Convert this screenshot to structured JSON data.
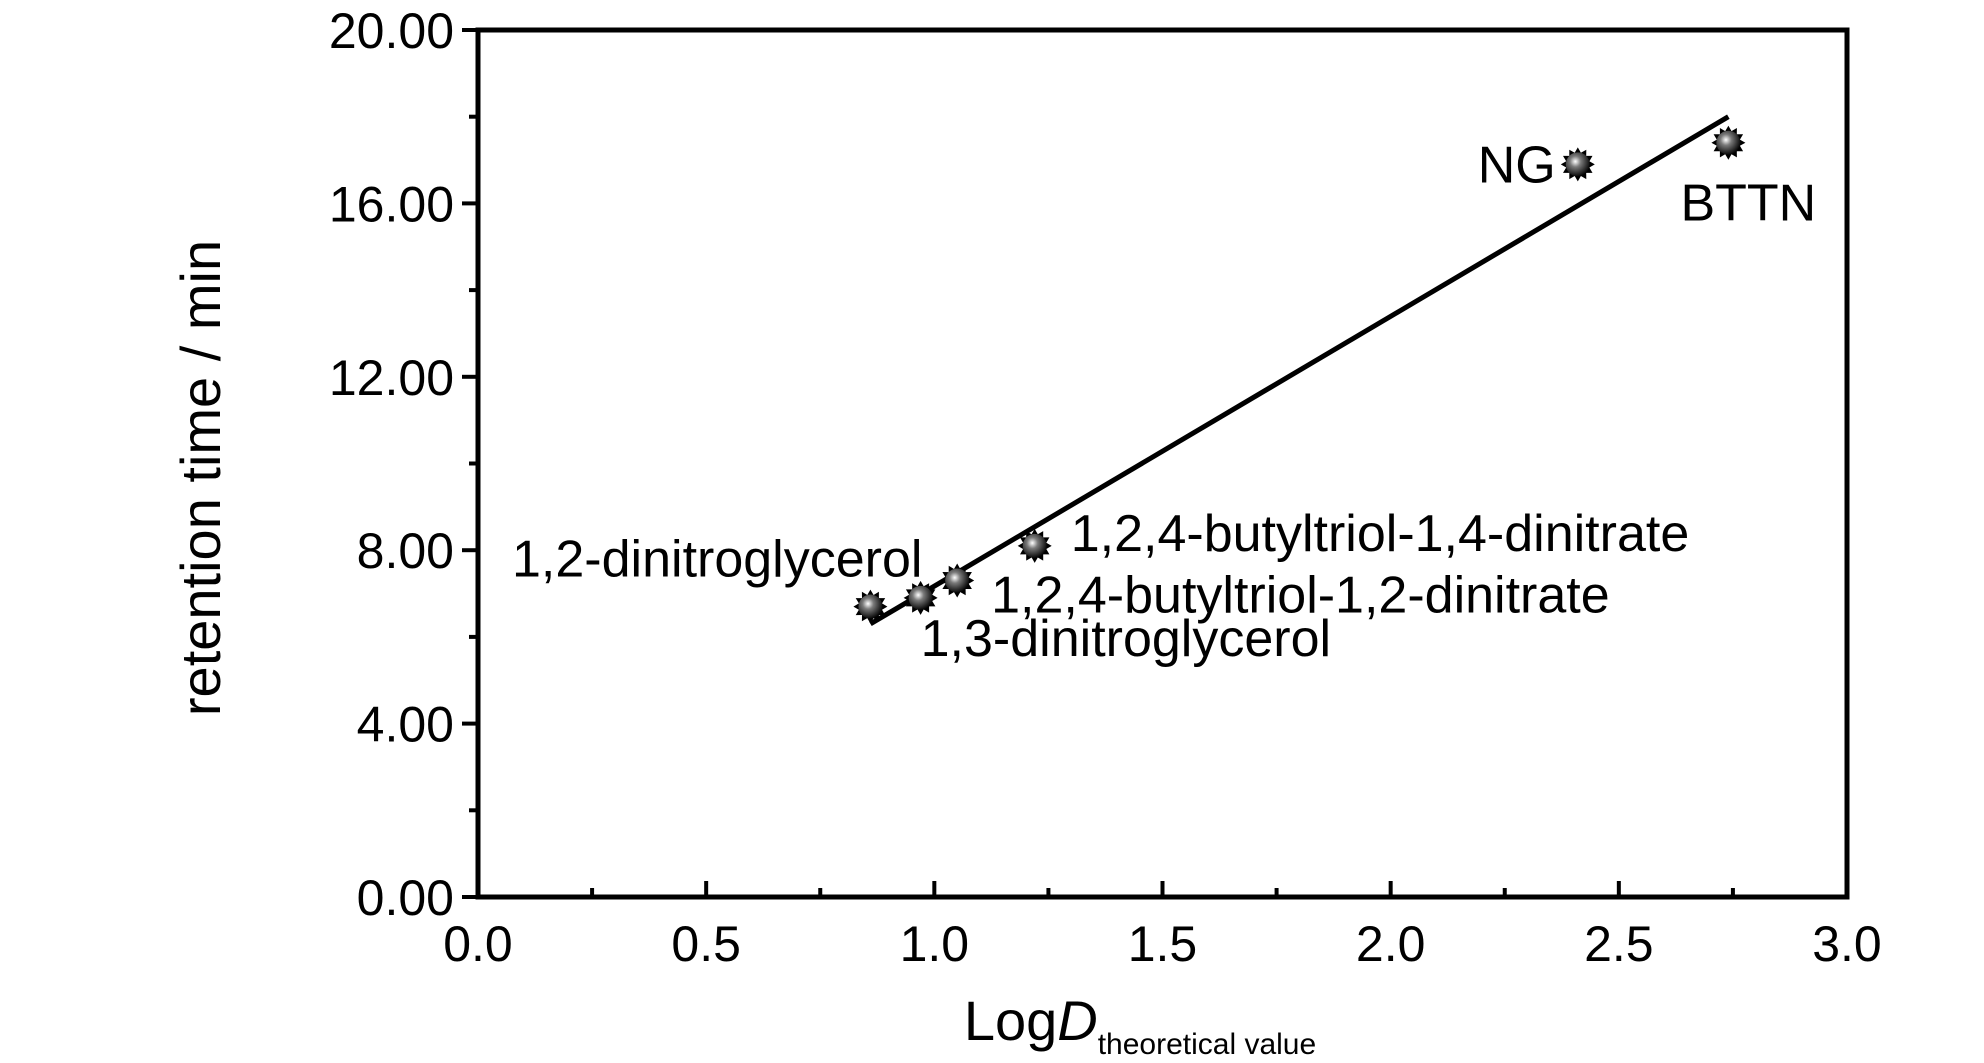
{
  "chart_data": {
    "type": "scatter",
    "title": "",
    "xlabel": "LogD",
    "xlabel_italic_part": "D",
    "xlabel_prefix": "Log",
    "xlabel_subscript": "theoretical value",
    "ylabel": "retention time / min",
    "xlim": [
      0.0,
      3.0
    ],
    "ylim": [
      0.0,
      20.0
    ],
    "x_ticks": [
      "0.0",
      "0.5",
      "1.0",
      "1.5",
      "2.0",
      "2.5",
      "3.0"
    ],
    "y_ticks": [
      "0.00",
      "4.00",
      "8.00",
      "12.00",
      "16.00",
      "20.00"
    ],
    "grid": false,
    "legend": "none",
    "points": [
      {
        "label": "1,2-dinitroglycerol",
        "x": 0.86,
        "y": 6.7
      },
      {
        "label": "1,3-dinitroglycerol",
        "x": 0.97,
        "y": 6.9
      },
      {
        "label": "1,2,4-butyltriol-1,2-dinitrate",
        "x": 1.05,
        "y": 7.3
      },
      {
        "label": "1,2,4-butyltriol-1,4-dinitrate",
        "x": 1.22,
        "y": 8.1
      },
      {
        "label": "NG",
        "x": 2.41,
        "y": 16.9
      },
      {
        "label": "BTTN",
        "x": 2.74,
        "y": 17.4
      }
    ],
    "fit_line": {
      "x": [
        0.86,
        2.74
      ],
      "y": [
        6.3,
        18.0
      ]
    }
  }
}
